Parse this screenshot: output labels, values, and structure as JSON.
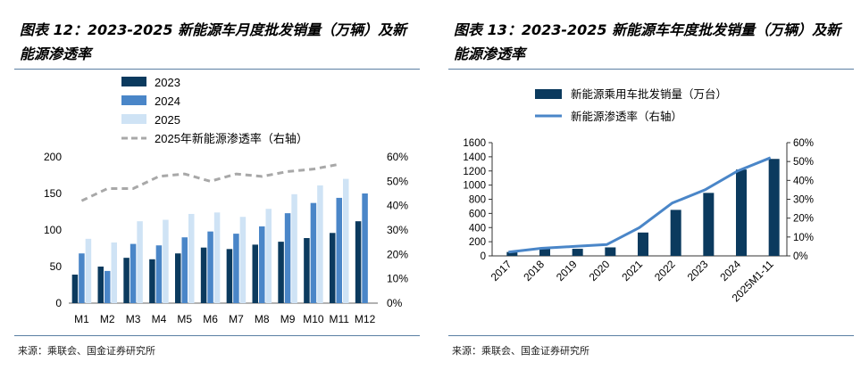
{
  "left": {
    "title": "图表 12：2023-2025 新能源车月度批发销量（万辆）及新能源渗透率",
    "source": "来源：乘联会、国金证券研究所",
    "chart_data": {
      "type": "bar",
      "title": "2023-2025新能源车月度批发销量（万辆）及新能源渗透率",
      "categories": [
        "M1",
        "M2",
        "M3",
        "M4",
        "M5",
        "M6",
        "M7",
        "M8",
        "M9",
        "M10",
        "M11",
        "M12"
      ],
      "series": [
        {
          "name": "2023",
          "color": "#0b3a5e",
          "values": [
            39,
            50,
            62,
            60,
            68,
            76,
            74,
            80,
            84,
            89,
            96,
            112
          ]
        },
        {
          "name": "2024",
          "color": "#4a86c8",
          "values": [
            68,
            44,
            81,
            79,
            90,
            98,
            95,
            105,
            123,
            137,
            144,
            150
          ]
        },
        {
          "name": "2025",
          "color": "#cfe3f5",
          "values": [
            88,
            83,
            112,
            114,
            122,
            124,
            118,
            129,
            149,
            161,
            170,
            null
          ]
        }
      ],
      "line": {
        "name": "2025年新能源渗透率（右轴）",
        "color": "#a8a8a8",
        "values": [
          42,
          47,
          47,
          52,
          53,
          50,
          53,
          52,
          54,
          55,
          57,
          null
        ]
      },
      "ylim": [
        0,
        200
      ],
      "yticks": [
        "0",
        "50",
        "100",
        "150",
        "200"
      ],
      "y2lim": [
        0,
        60
      ],
      "y2ticks": [
        "0%",
        "10%",
        "20%",
        "30%",
        "40%",
        "50%",
        "60%"
      ],
      "legend_position": "top-left"
    }
  },
  "right": {
    "title": "图表 13：2023-2025 新能源车年度批发销量（万辆）及新能源渗透率",
    "source": "来源：乘联会、国金证券研究所",
    "chart_data": {
      "type": "bar",
      "title": "2023-2025新能源车年度批发销量（万辆）及新能源渗透率",
      "categories": [
        "2017",
        "2018",
        "2019",
        "2020",
        "2021",
        "2022",
        "2023",
        "2024",
        "2025M1-11"
      ],
      "series": [
        {
          "name": "新能源乘用车批发销量（万台）",
          "color": "#0b3a5e",
          "values": [
            55,
            100,
            100,
            120,
            330,
            650,
            890,
            1220,
            1370
          ]
        }
      ],
      "line": {
        "name": "新能源渗透率（右轴）",
        "color": "#4a86c8",
        "values": [
          2,
          4,
          5,
          6,
          15,
          28,
          35,
          45,
          52
        ]
      },
      "ylim": [
        0,
        1600
      ],
      "yticks": [
        "0",
        "200",
        "400",
        "600",
        "800",
        "1000",
        "1200",
        "1400",
        "1600"
      ],
      "y2lim": [
        0,
        60
      ],
      "y2ticks": [
        "0%",
        "10%",
        "20%",
        "30%",
        "40%",
        "50%",
        "60%"
      ],
      "legend_position": "top-center"
    }
  }
}
